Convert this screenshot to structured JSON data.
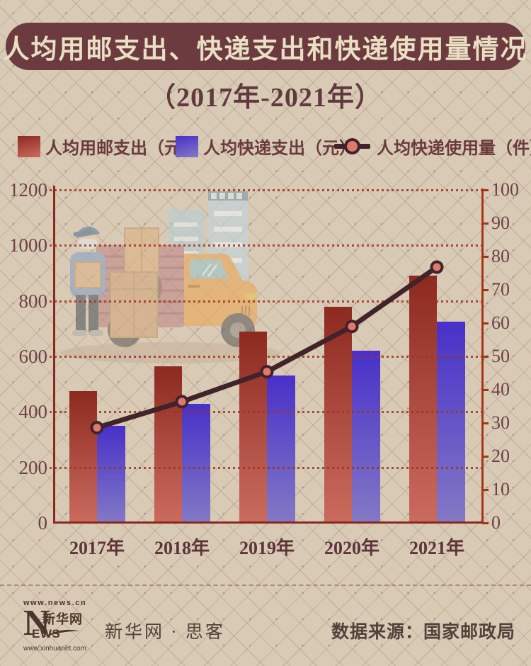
{
  "title": "人均用邮支出、快递支出和快递使用量情况",
  "subtitle": "（2017年-2021年）",
  "legend": [
    {
      "label": "人均用邮支出（元）",
      "symbol": "red-gradient-square"
    },
    {
      "label": "人均快递支出（元）",
      "symbol": "blue-gradient-square"
    },
    {
      "label": "人均快递使用量（件）",
      "symbol": "line-with-dot"
    }
  ],
  "chart_data": {
    "type": "bar",
    "subtype": "grouped bars + line on secondary axis",
    "categories": [
      "2017年",
      "2018年",
      "2019年",
      "2020年",
      "2021年"
    ],
    "series": [
      {
        "name": "人均用邮支出（元）",
        "type": "bar",
        "axis": "left",
        "values": [
          475,
          565,
          690,
          780,
          890
        ]
      },
      {
        "name": "人均快递支出（元）",
        "type": "bar",
        "axis": "left",
        "values": [
          350,
          430,
          530,
          620,
          725
        ]
      },
      {
        "name": "人均快递使用量（件）",
        "type": "line",
        "axis": "right",
        "values": [
          28.6,
          36.4,
          45.4,
          59,
          76.8
        ]
      }
    ],
    "left_axis": {
      "min": 0,
      "max": 1200,
      "step": 200,
      "ticks": [
        0,
        200,
        400,
        600,
        800,
        1000,
        1200
      ]
    },
    "right_axis": {
      "min": 0,
      "max": 100,
      "step": 10,
      "ticks": [
        0,
        10,
        20,
        30,
        40,
        50,
        60,
        70,
        80,
        90,
        100
      ]
    },
    "grid": "horizontal dotted lines at left-axis steps",
    "legend_position": "top"
  },
  "footer": {
    "logo_url_top": "www.news.cn",
    "logo_n": "N",
    "logo_cn": "新华网",
    "logo_ews": "EWS",
    "logo_url_bottom": "www.xinhuanet.com",
    "brand": "新华网 · 思客",
    "source": "数据来源：国家邮政局"
  },
  "colors": {
    "banner_bg": "#6b3b40",
    "banner_text": "#eadec3",
    "subtitle_color": "#61393f",
    "text_main": "#6a3a3d",
    "text_axis": "#6d4046",
    "text_year": "#5e333b",
    "text_footer": "#53413b",
    "logo_color": "#4b352d",
    "bar1_top": "#8d2a20",
    "bar1_bottom": "#cb6b5e",
    "bar2_top": "#4830c9",
    "bar2_bottom": "#8379c5",
    "line_color": "#42232a",
    "marker_fill": "#e0796d",
    "grid_color": "#9e3420",
    "axis_left_color": "#8a2a1e",
    "axis_right_color": "#a63517"
  }
}
